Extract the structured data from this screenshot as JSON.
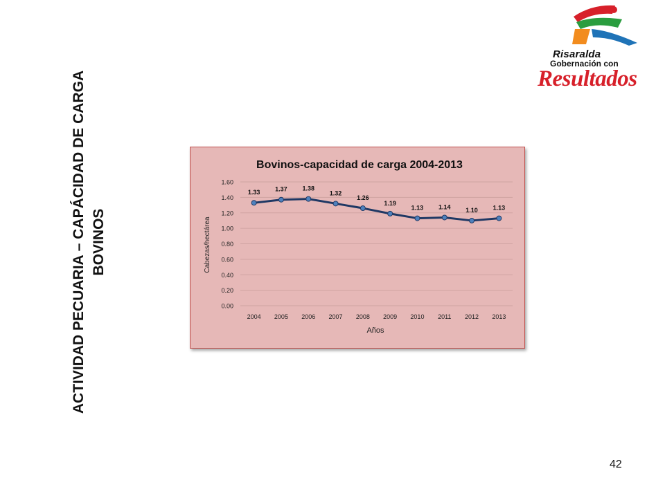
{
  "slide": {
    "title": "ACTIVIDAD PECUARIA – CAPÁCIDAD DE CARGA BOVINOS",
    "page_number": "42"
  },
  "logo": {
    "line1": "Risaralda",
    "line2": "Gobernación con",
    "line3": "Resultados",
    "colors": [
      "#d7202a",
      "#2a9d3f",
      "#f28c1e",
      "#1f73b7"
    ]
  },
  "chart_data": {
    "type": "line",
    "title": "Bovinos-capacidad de carga  2004-2013",
    "xlabel": "Años",
    "ylabel": "Cabezas/hectárea",
    "categories": [
      "2004",
      "2005",
      "2006",
      "2007",
      "2008",
      "2009",
      "2010",
      "2011",
      "2012",
      "2013"
    ],
    "series": [
      {
        "values": [
          1.33,
          1.37,
          1.38,
          1.32,
          1.26,
          1.19,
          1.13,
          1.14,
          1.1,
          1.13
        ],
        "labels": [
          "1.33",
          "1.37",
          "1.38",
          "1.32",
          "1.26",
          "1.19",
          "1.13",
          "1.14",
          "1.10",
          "1.13"
        ]
      }
    ],
    "ylim": [
      0,
      1.6
    ],
    "yticks": [
      "0.00",
      "0.20",
      "0.40",
      "0.60",
      "0.80",
      "1.00",
      "1.20",
      "1.40",
      "1.60"
    ],
    "grid": true,
    "legend": "none",
    "colors": {
      "line": "#1f3864",
      "marker": "#4f81bd",
      "background": "#e6b8b7",
      "border": "#c0504d",
      "grid": "#cfa3a2"
    }
  }
}
